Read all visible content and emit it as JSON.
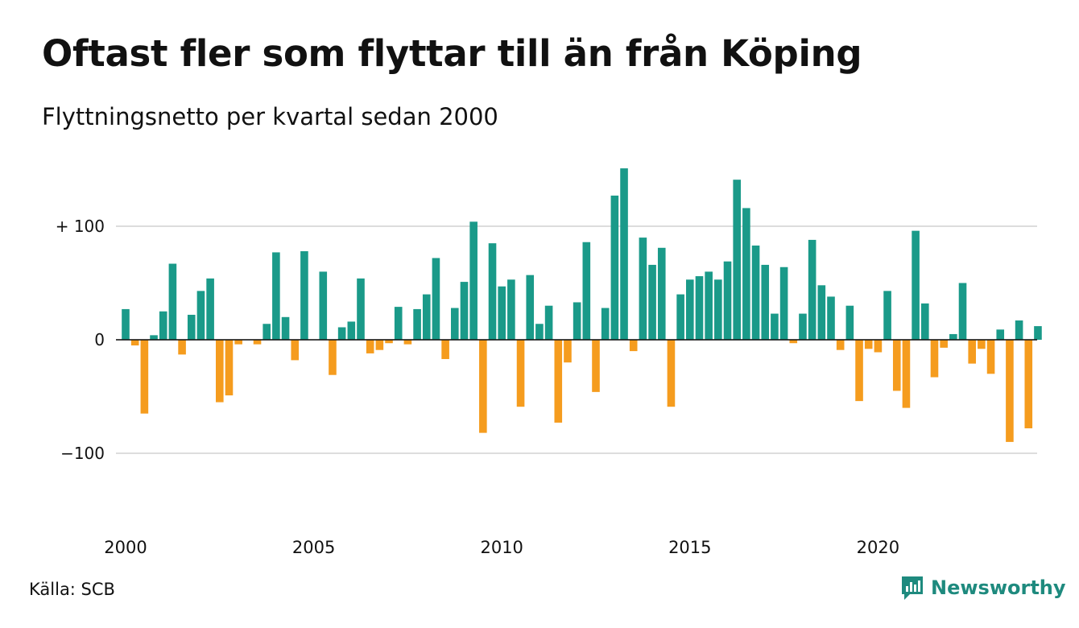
{
  "title": "Oftast fler som flyttar till än från Köping",
  "subtitle": "Flyttningsnetto per kvartal sedan 2000",
  "source": "Källa: SCB",
  "brand": "Newsworthy",
  "colors": {
    "positive": "#1a9a89",
    "negative": "#f59c1e",
    "grid": "#dddddd",
    "brand": "#1e8a7e"
  },
  "chart_data": {
    "type": "bar",
    "x_start": 2000,
    "periods_per_year": 4,
    "values": [
      27,
      -5,
      -65,
      4,
      25,
      67,
      -13,
      22,
      43,
      54,
      -55,
      -49,
      -4,
      0,
      -4,
      14,
      77,
      20,
      -18,
      78,
      0,
      60,
      -31,
      11,
      16,
      54,
      -12,
      -9,
      -3,
      29,
      -4,
      27,
      40,
      72,
      -17,
      28,
      51,
      104,
      -82,
      85,
      47,
      53,
      -59,
      57,
      14,
      30,
      -73,
      -20,
      33,
      86,
      -46,
      28,
      127,
      151,
      -10,
      90,
      66,
      81,
      -59,
      40,
      53,
      56,
      60,
      53,
      69,
      141,
      116,
      83,
      66,
      23,
      64,
      -3,
      23,
      88,
      48,
      38,
      -9,
      30,
      -54,
      -8,
      -11,
      43,
      -45,
      -60,
      96,
      32,
      -33,
      -7,
      5,
      50,
      -21,
      -8,
      -30,
      9,
      -90,
      17,
      -78,
      12
    ],
    "ylim": [
      -140,
      160
    ],
    "yticks": [
      {
        "value": 100,
        "label": "+ 100"
      },
      {
        "value": 0,
        "label": "0"
      },
      {
        "value": -100,
        "label": "−100"
      }
    ],
    "xticks": [
      {
        "value": 2000,
        "label": "2000"
      },
      {
        "value": 2005,
        "label": "2005"
      },
      {
        "value": 2010,
        "label": "2010"
      },
      {
        "value": 2015,
        "label": "2015"
      },
      {
        "value": 2020,
        "label": "2020"
      }
    ],
    "grid": true,
    "legend": "none"
  }
}
